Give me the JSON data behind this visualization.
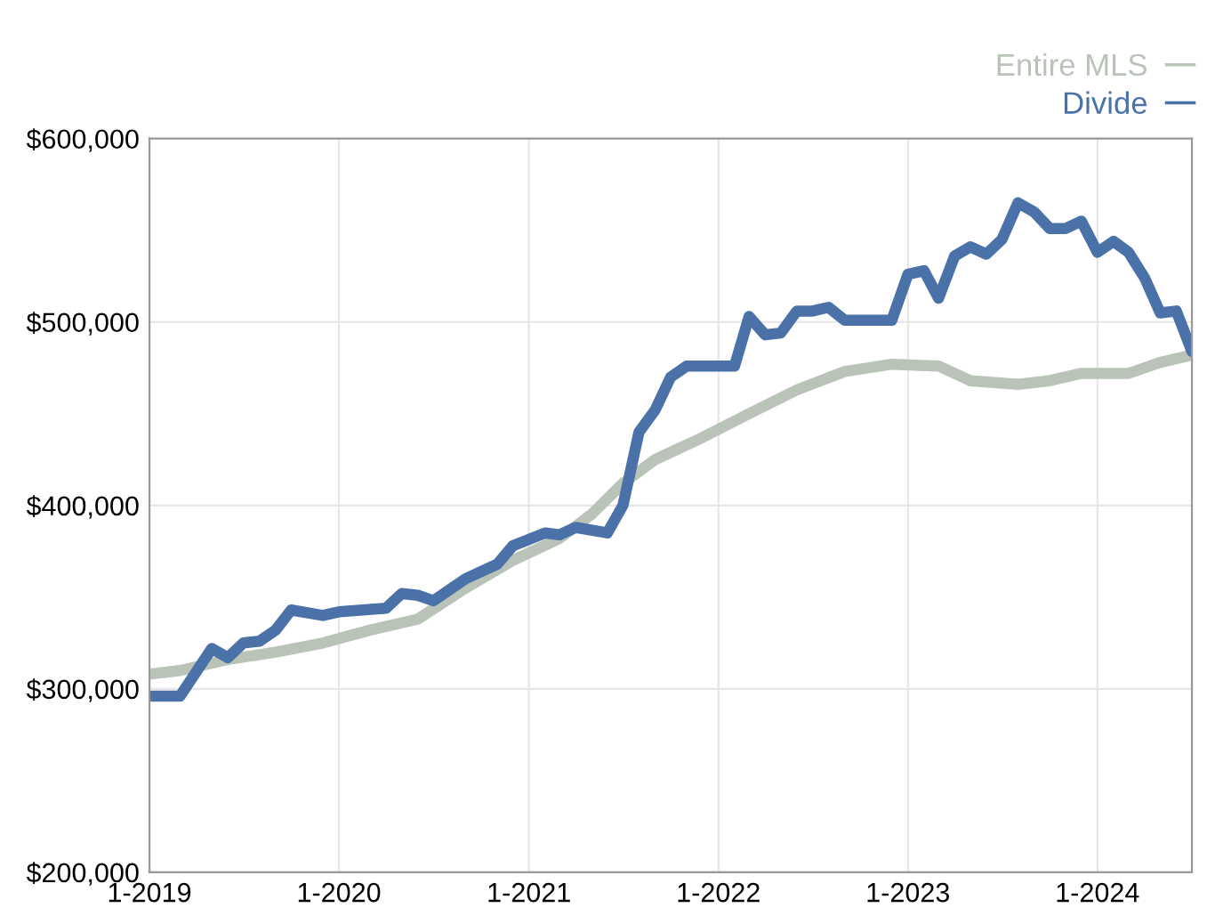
{
  "chart_data": {
    "type": "line",
    "series": [
      {
        "name": "Entire MLS",
        "color": "#b9c3b8",
        "x": [
          "2019-01",
          "2019-03",
          "2019-06",
          "2019-09",
          "2019-12",
          "2020-03",
          "2020-06",
          "2020-09",
          "2020-12",
          "2021-03",
          "2021-05",
          "2021-07",
          "2021-09",
          "2021-12",
          "2022-03",
          "2022-06",
          "2022-09",
          "2022-12",
          "2023-03",
          "2023-05",
          "2023-08",
          "2023-10",
          "2023-12",
          "2024-03",
          "2024-05",
          "2024-07"
        ],
        "values": [
          308000,
          310000,
          316000,
          320000,
          325000,
          332000,
          338000,
          355000,
          370000,
          382000,
          395000,
          412000,
          425000,
          437000,
          450000,
          463000,
          473000,
          477000,
          476000,
          468000,
          466000,
          468000,
          472000,
          472000,
          478000,
          482000
        ]
      },
      {
        "name": "Divide",
        "color": "#4a72a8",
        "x": [
          "2019-01",
          "2019-03",
          "2019-05",
          "2019-06",
          "2019-07",
          "2019-08",
          "2019-09",
          "2019-10",
          "2019-12",
          "2020-01",
          "2020-04",
          "2020-05",
          "2020-06",
          "2020-07",
          "2020-09",
          "2020-11",
          "2020-12",
          "2021-02",
          "2021-03",
          "2021-04",
          "2021-06",
          "2021-07",
          "2021-08",
          "2021-09",
          "2021-10",
          "2021-11",
          "2022-02",
          "2022-03",
          "2022-04",
          "2022-05",
          "2022-06",
          "2022-07",
          "2022-08",
          "2022-09",
          "2022-12",
          "2023-01",
          "2023-02",
          "2023-03",
          "2023-04",
          "2023-05",
          "2023-06",
          "2023-07",
          "2023-08",
          "2023-09",
          "2023-10",
          "2023-11",
          "2023-12",
          "2024-01",
          "2024-02",
          "2024-03",
          "2024-04",
          "2024-05",
          "2024-06",
          "2024-07"
        ],
        "values": [
          296000,
          296000,
          322000,
          317000,
          325000,
          326000,
          332000,
          343000,
          340000,
          342000,
          344000,
          352000,
          351000,
          348000,
          360000,
          368000,
          378000,
          385000,
          384000,
          388000,
          385000,
          400000,
          440000,
          452000,
          470000,
          476000,
          476000,
          503000,
          493000,
          494000,
          506000,
          506000,
          508000,
          501000,
          501000,
          526000,
          528000,
          513000,
          536000,
          541000,
          537000,
          545000,
          565000,
          560000,
          551000,
          551000,
          555000,
          538000,
          544000,
          538000,
          524000,
          505000,
          506000,
          484000
        ]
      }
    ],
    "xlim": [
      "2019-01",
      "2024-07"
    ],
    "xticks": [
      {
        "value": "2019-01",
        "label": "1-2019"
      },
      {
        "value": "2020-01",
        "label": "1-2020"
      },
      {
        "value": "2021-01",
        "label": "1-2021"
      },
      {
        "value": "2022-01",
        "label": "1-2022"
      },
      {
        "value": "2023-01",
        "label": "1-2023"
      },
      {
        "value": "2024-01",
        "label": "1-2024"
      }
    ],
    "ylim": [
      200000,
      600000
    ],
    "yticks": [
      {
        "value": 200000,
        "label": "$200,000"
      },
      {
        "value": 300000,
        "label": "$300,000"
      },
      {
        "value": 400000,
        "label": "$400,000"
      },
      {
        "value": 500000,
        "label": "$500,000"
      },
      {
        "value": 600000,
        "label": "$600,000"
      }
    ],
    "grid": true,
    "legend": "top right",
    "line_style": "solid",
    "marker": "none"
  }
}
